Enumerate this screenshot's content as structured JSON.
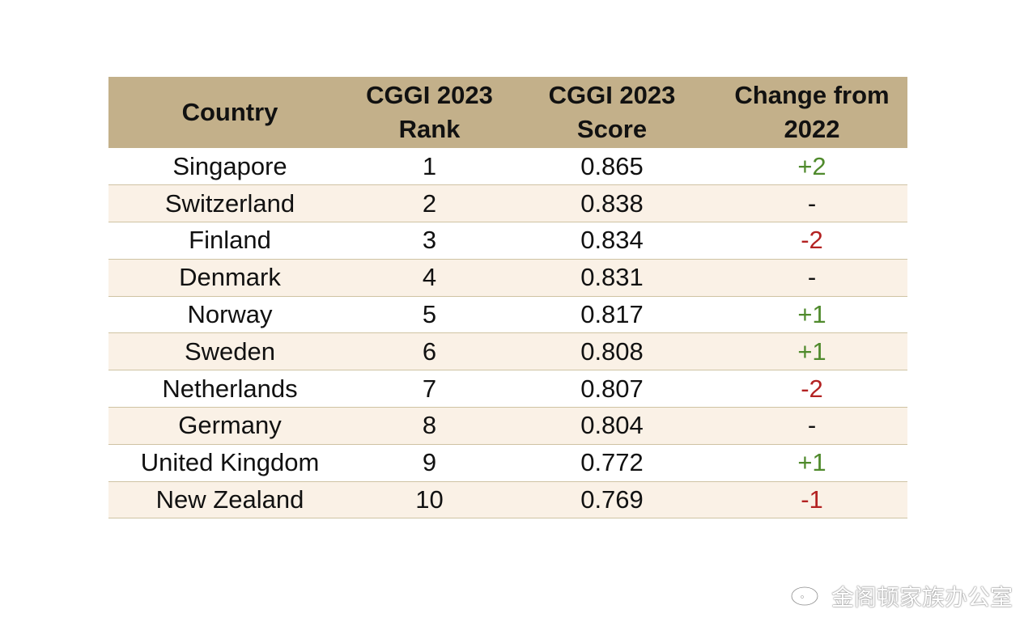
{
  "table": {
    "headers": {
      "country": "Country",
      "rank_line1": "CGGI 2023",
      "rank_line2": "Rank",
      "score_line1": "CGGI 2023",
      "score_line2": "Score",
      "change_line1": "Change from",
      "change_line2": "2022"
    },
    "rows": [
      {
        "country": "Singapore",
        "rank": "1",
        "score": "0.865",
        "change": "+2",
        "trend": "pos"
      },
      {
        "country": "Switzerland",
        "rank": "2",
        "score": "0.838",
        "change": "-",
        "trend": "neutral"
      },
      {
        "country": "Finland",
        "rank": "3",
        "score": "0.834",
        "change": "-2",
        "trend": "neg"
      },
      {
        "country": "Denmark",
        "rank": "4",
        "score": "0.831",
        "change": "-",
        "trend": "neutral"
      },
      {
        "country": "Norway",
        "rank": "5",
        "score": "0.817",
        "change": "+1",
        "trend": "pos"
      },
      {
        "country": "Sweden",
        "rank": "6",
        "score": "0.808",
        "change": "+1",
        "trend": "pos"
      },
      {
        "country": "Netherlands",
        "rank": "7",
        "score": "0.807",
        "change": "-2",
        "trend": "neg"
      },
      {
        "country": "Germany",
        "rank": "8",
        "score": "0.804",
        "change": "-",
        "trend": "neutral"
      },
      {
        "country": "United Kingdom",
        "rank": "9",
        "score": "0.772",
        "change": "+1",
        "trend": "pos"
      },
      {
        "country": "New Zealand",
        "rank": "10",
        "score": "0.769",
        "change": "-1",
        "trend": "neg"
      }
    ]
  },
  "colors": {
    "header_bg": "#c3b08a",
    "row_alt_bg": "#faf1e6",
    "positive": "#4f8a2c",
    "negative": "#b32222"
  },
  "watermark": {
    "icon": "weibo-icon",
    "text": "金阁顿家族办公室"
  }
}
